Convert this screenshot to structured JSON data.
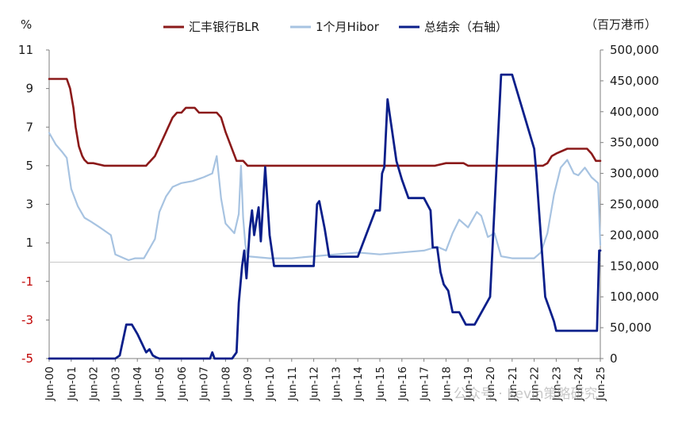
{
  "chart_data": {
    "type": "line",
    "left_axis_unit": "%",
    "right_axis_unit": "（百万港币）",
    "left_ylim": [
      -5,
      11
    ],
    "left_ticks": [
      "11",
      "9",
      "7",
      "5",
      "3",
      "1",
      "-1",
      "-3",
      "-5"
    ],
    "right_ylim": [
      0,
      500000
    ],
    "right_ticks": [
      "500,000",
      "450,000",
      "400,000",
      "350,000",
      "300,000",
      "250,000",
      "200,000",
      "150,000",
      "100,000",
      "50,000",
      "0"
    ],
    "x_ticks": [
      "Jun-00",
      "Jun-01",
      "Jun-02",
      "Jun-03",
      "Jun-04",
      "Jun-05",
      "Jun-06",
      "Jun-07",
      "Jun-08",
      "Jun-09",
      "Jun-10",
      "Jun-11",
      "Jun-12",
      "Jun-13",
      "Jun-14",
      "Jun-15",
      "Jun-16",
      "Jun-17",
      "Jun-18",
      "Jun-19",
      "Jun-20",
      "Jun-21",
      "Jun-22",
      "Jun-23",
      "Jun-24",
      "Jun-25"
    ],
    "x_range": [
      2000.0,
      2025.0
    ],
    "grid": false,
    "legend_position": "top",
    "series": [
      {
        "name": "汇丰银行BLR",
        "axis": "left",
        "color": "#8b1a1a",
        "x": [
          2000.0,
          2000.1,
          2000.8,
          2000.95,
          2001.1,
          2001.2,
          2001.35,
          2001.5,
          2001.6,
          2001.75,
          2002.0,
          2002.5,
          2003.0,
          2003.5,
          2004.0,
          2004.4,
          2004.5,
          2004.6,
          2004.8,
          2005.0,
          2005.2,
          2005.4,
          2005.6,
          2005.8,
          2006.0,
          2006.2,
          2006.6,
          2006.8,
          2007.0,
          2007.6,
          2007.8,
          2008.0,
          2008.5,
          2008.8,
          2009.0,
          2010.0,
          2012.0,
          2014.0,
          2016.0,
          2017.5,
          2018.0,
          2018.2,
          2018.8,
          2019.0,
          2020.0,
          2021.0,
          2022.0,
          2022.4,
          2022.6,
          2022.8,
          2023.0,
          2023.5,
          2024.0,
          2024.4,
          2024.6,
          2024.8,
          2025.0
        ],
        "values": [
          9.5,
          9.5,
          9.5,
          9.0,
          8.0,
          7.0,
          6.0,
          5.5,
          5.3,
          5.13,
          5.13,
          5.0,
          5.0,
          5.0,
          5.0,
          5.0,
          5.13,
          5.25,
          5.5,
          6.0,
          6.5,
          7.0,
          7.5,
          7.75,
          7.75,
          8.0,
          8.0,
          7.75,
          7.75,
          7.75,
          7.5,
          6.75,
          5.25,
          5.25,
          5.0,
          5.0,
          5.0,
          5.0,
          5.0,
          5.0,
          5.13,
          5.13,
          5.13,
          5.0,
          5.0,
          5.0,
          5.0,
          5.0,
          5.13,
          5.5,
          5.63,
          5.88,
          5.88,
          5.88,
          5.63,
          5.25,
          5.25
        ]
      },
      {
        "name": "1个月Hibor",
        "axis": "left",
        "color": "#a7c3e1",
        "x": [
          2000.0,
          2000.3,
          2000.6,
          2000.8,
          2001.0,
          2001.3,
          2001.6,
          2001.9,
          2002.3,
          2002.8,
          2003.0,
          2003.4,
          2003.6,
          2003.9,
          2004.3,
          2004.6,
          2004.8,
          2005.0,
          2005.3,
          2005.6,
          2006.0,
          2006.5,
          2007.0,
          2007.4,
          2007.6,
          2007.8,
          2008.0,
          2008.4,
          2008.6,
          2008.7,
          2008.8,
          2008.9,
          2009.0,
          2010.0,
          2011.0,
          2012.0,
          2013.0,
          2014.0,
          2015.0,
          2016.0,
          2017.0,
          2017.6,
          2018.0,
          2018.3,
          2018.6,
          2019.0,
          2019.4,
          2019.6,
          2019.9,
          2020.2,
          2020.5,
          2021.0,
          2022.0,
          2022.3,
          2022.6,
          2022.9,
          2023.2,
          2023.5,
          2023.8,
          2024.0,
          2024.3,
          2024.6,
          2024.9,
          2025.0
        ],
        "values": [
          6.7,
          6.1,
          5.7,
          5.4,
          3.8,
          2.9,
          2.3,
          2.1,
          1.8,
          1.4,
          0.4,
          0.2,
          0.1,
          0.2,
          0.2,
          0.8,
          1.2,
          2.6,
          3.4,
          3.9,
          4.1,
          4.2,
          4.4,
          4.6,
          5.5,
          3.3,
          2.0,
          1.5,
          2.5,
          5.0,
          2.3,
          0.9,
          0.3,
          0.2,
          0.2,
          0.3,
          0.4,
          0.5,
          0.4,
          0.5,
          0.6,
          0.8,
          0.6,
          1.5,
          2.2,
          1.8,
          2.6,
          2.4,
          1.3,
          1.5,
          0.3,
          0.2,
          0.2,
          0.5,
          1.5,
          3.5,
          4.9,
          5.3,
          4.6,
          4.5,
          4.9,
          4.4,
          4.1,
          0.9
        ]
      },
      {
        "name": "总结余（右轴）",
        "axis": "right",
        "color": "#0b1f8a",
        "x": [
          2000.0,
          2003.0,
          2003.2,
          2003.5,
          2003.75,
          2004.0,
          2004.2,
          2004.4,
          2004.55,
          2004.7,
          2004.85,
          2005.0,
          2007.3,
          2007.4,
          2007.5,
          2008.3,
          2008.5,
          2008.6,
          2008.75,
          2008.85,
          2008.95,
          2009.1,
          2009.2,
          2009.3,
          2009.5,
          2009.6,
          2009.8,
          2010.0,
          2010.2,
          2010.4,
          2012.0,
          2012.15,
          2012.25,
          2012.5,
          2012.7,
          2013.0,
          2014.0,
          2014.8,
          2015.0,
          2015.1,
          2015.2,
          2015.35,
          2015.55,
          2015.75,
          2016.0,
          2016.3,
          2017.0,
          2017.3,
          2017.4,
          2017.6,
          2017.75,
          2017.9,
          2018.1,
          2018.3,
          2018.6,
          2018.9,
          2019.0,
          2019.3,
          2020.0,
          2020.5,
          2020.8,
          2021.0,
          2021.5,
          2022.0,
          2022.1,
          2022.3,
          2022.5,
          2022.7,
          2022.9,
          2023.0,
          2023.5,
          2024.0,
          2024.5,
          2024.85,
          2024.95,
          2025.0
        ],
        "values": [
          0,
          0,
          5000,
          55000,
          55000,
          40000,
          25000,
          10000,
          15000,
          5000,
          2000,
          0,
          0,
          10000,
          0,
          0,
          10000,
          90000,
          150000,
          175000,
          130000,
          210000,
          240000,
          200000,
          245000,
          190000,
          310000,
          200000,
          150000,
          150000,
          150000,
          250000,
          255000,
          210000,
          165000,
          165000,
          165000,
          240000,
          240000,
          300000,
          310000,
          420000,
          370000,
          320000,
          290000,
          260000,
          260000,
          240000,
          180000,
          180000,
          140000,
          120000,
          110000,
          75000,
          75000,
          55000,
          55000,
          55000,
          100000,
          460000,
          460000,
          460000,
          400000,
          340000,
          300000,
          200000,
          100000,
          80000,
          60000,
          45000,
          45000,
          45000,
          45000,
          45000,
          175000,
          175000
        ]
      }
    ]
  },
  "watermark": "公众号 · Kevin策略研究"
}
